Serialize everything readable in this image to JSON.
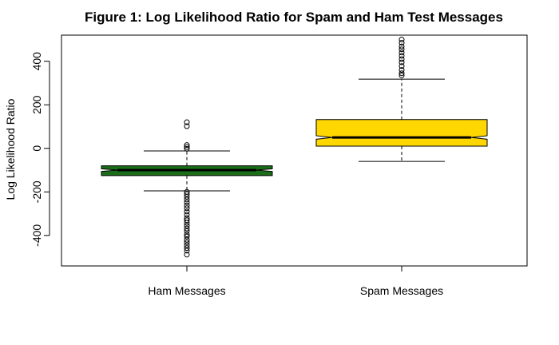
{
  "chart_data": {
    "type": "boxplot",
    "title": "Figure 1: Log Likelihood Ratio for Spam and Ham Test Messages",
    "xlabel": "",
    "ylabel": "Log Likelihood Ratio",
    "ylim": [
      -540,
      520
    ],
    "yticks": [
      -400,
      -200,
      0,
      200,
      400
    ],
    "notched": true,
    "grid": false,
    "legend": "none",
    "categories": [
      "Ham Messages",
      "Spam Messages"
    ],
    "series": [
      {
        "color": "#1a6e1a",
        "whisker_low": -195,
        "q1": -125,
        "notch_low": -106,
        "median": -100,
        "notch_high": -94,
        "q3": -80,
        "whisker_high": -12,
        "outliers": [
          120,
          102,
          15,
          6,
          -2,
          -200,
          -210,
          -222,
          -235,
          -248,
          -262,
          -275,
          -290,
          -305,
          -320,
          -330,
          -342,
          -355,
          -368,
          -380,
          -395,
          -405,
          -420,
          -432,
          -445,
          -458,
          -470,
          -488
        ]
      },
      {
        "color": "#ffd700",
        "whisker_low": -60,
        "q1": 10,
        "notch_low": 42,
        "median": 50,
        "notch_high": 58,
        "q3": 132,
        "whisker_high": 318,
        "outliers": [
          500,
          485,
          468,
          455,
          440,
          425,
          410,
          395,
          378,
          360,
          345,
          335
        ]
      }
    ]
  }
}
